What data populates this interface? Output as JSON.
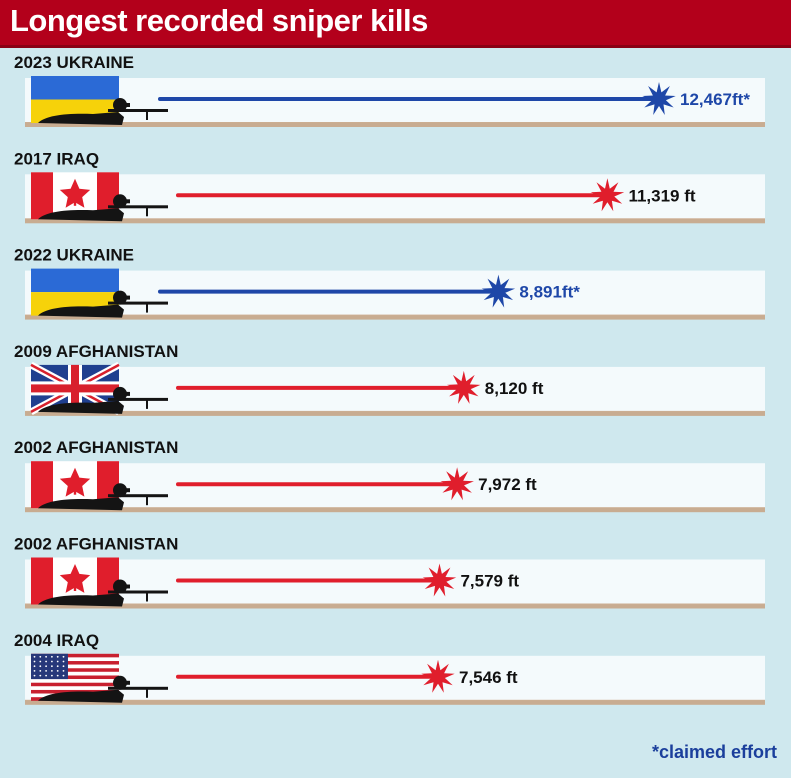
{
  "title": "Longest recorded sniper kills",
  "footnote": "*claimed effort",
  "colors": {
    "claimed": "#1e47a8",
    "confirmed": "#e01e2c",
    "header": "#b3001b",
    "strip": "#f4fafc"
  },
  "chart_data": {
    "type": "bar",
    "title": "Longest recorded sniper kills",
    "unit": "ft",
    "categories": [
      "2023 UKRAINE",
      "2017 IRAQ",
      "2022 UKRAINE",
      "2009 AFGHANISTAN",
      "2002 AFGHANISTAN",
      "2002 AFGHANISTAN",
      "2004 IRAQ"
    ],
    "values": [
      12467,
      11319,
      8891,
      8120,
      7972,
      7579,
      7546
    ],
    "value_labels": [
      "12,467ft*",
      "11,319 ft",
      "8,891ft*",
      "8,120 ft",
      "7,972 ft",
      "7,579 ft",
      "7,546 ft"
    ],
    "flags": [
      "ukraine-flag-icon",
      "canada-flag-icon",
      "ukraine-flag-icon",
      "uk-flag-icon",
      "canada-flag-icon",
      "canada-flag-icon",
      "usa-flag-icon"
    ],
    "claimed": [
      true,
      false,
      true,
      false,
      false,
      false,
      false
    ]
  }
}
